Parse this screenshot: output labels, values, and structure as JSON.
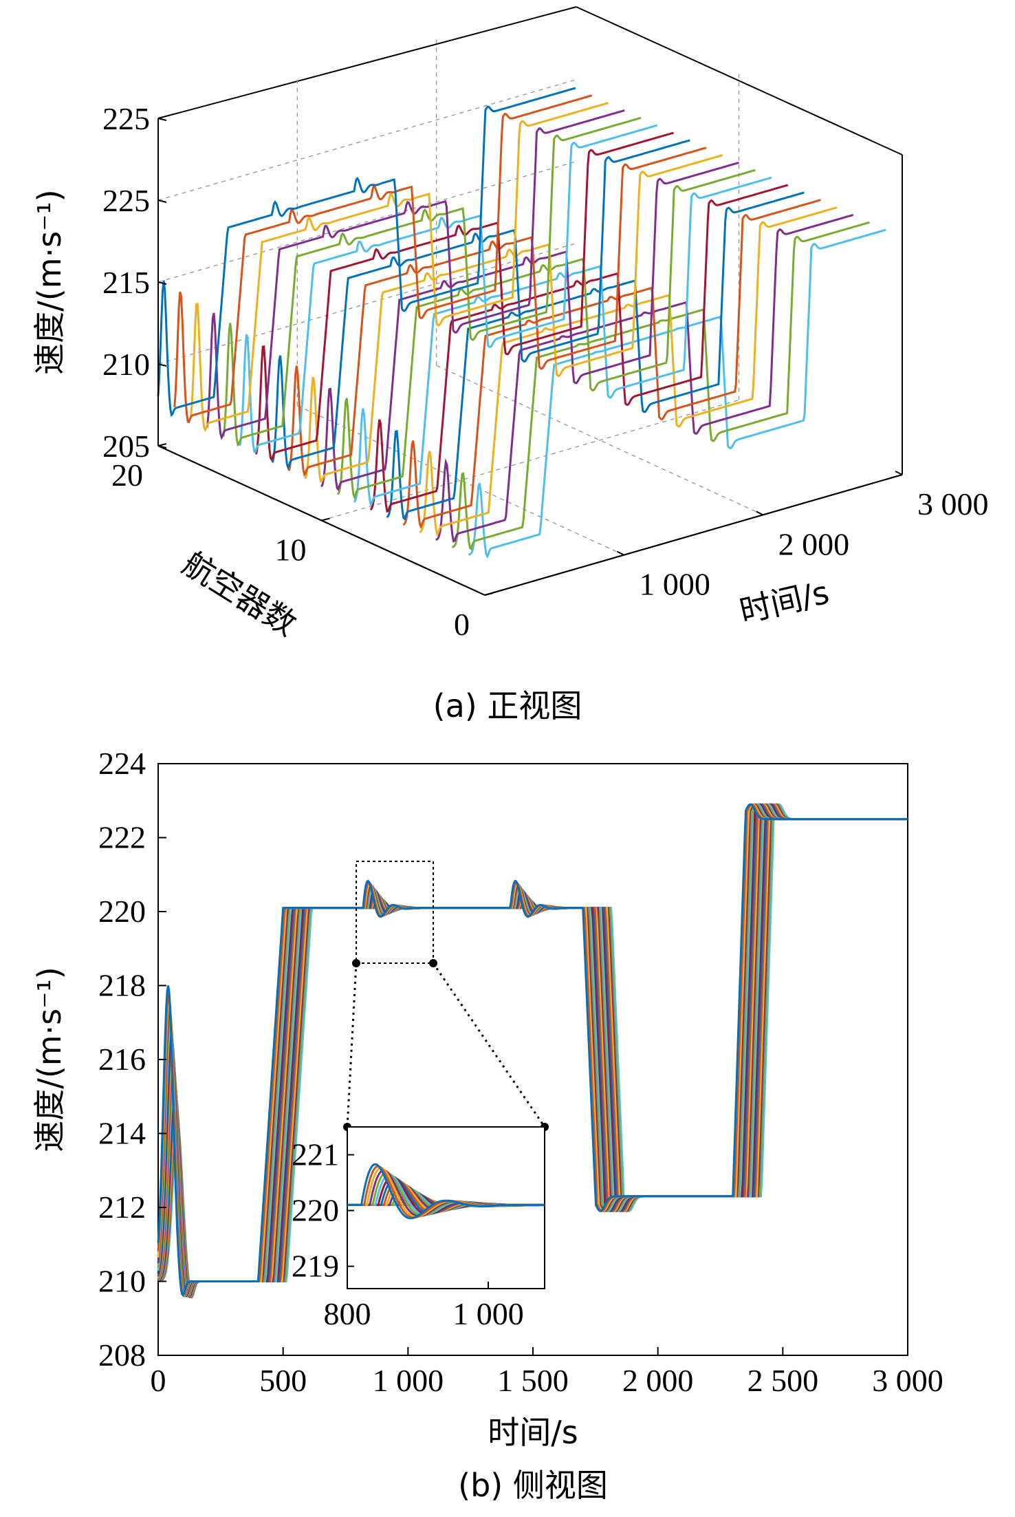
{
  "chart_data": [
    {
      "type": "line",
      "panel": "a",
      "caption": "(a) 正视图",
      "ylabel": "速度/(m·s⁻¹)",
      "xlabel": "时间/s",
      "zlabel": "航空器数",
      "y_ticks": [
        "205",
        "210",
        "215",
        "225",
        "225"
      ],
      "x_ticks": [
        "1 000",
        "2 000",
        "3 000"
      ],
      "z_ticks": [
        "0",
        "10",
        "20"
      ],
      "xlim": [
        0,
        3000
      ],
      "zlim": [
        0,
        20
      ],
      "grid": true,
      "series_count": 20
    },
    {
      "type": "line",
      "panel": "b",
      "caption": "(b) 侧视图",
      "ylabel": "速度/(m·s⁻¹)",
      "xlabel": "时间/s",
      "xlim": [
        0,
        3000
      ],
      "ylim": [
        208,
        224
      ],
      "x_ticks": [
        "0",
        "500",
        "1 000",
        "1 500",
        "2 000",
        "2 500",
        "3 000"
      ],
      "y_ticks": [
        "208",
        "210",
        "212",
        "214",
        "216",
        "218",
        "220",
        "222",
        "224"
      ],
      "grid": false,
      "series_count": 20,
      "profile": {
        "segments": [
          {
            "t_start": 0,
            "v": 210.0,
            "note": "initial oscillation peak ~218"
          },
          {
            "t_start": 400,
            "t_end": 500,
            "v_from": 210.0,
            "v_to": 220.1
          },
          {
            "t_start": 500,
            "t_end": 1700,
            "v": 220.1
          },
          {
            "t_start": 1700,
            "t_end": 1750,
            "v_from": 220.1,
            "v_to": 212.3
          },
          {
            "t_start": 1750,
            "t_end": 2300,
            "v": 212.3
          },
          {
            "t_start": 2300,
            "t_end": 2350,
            "v_from": 212.3,
            "v_to": 222.5
          },
          {
            "t_start": 2350,
            "t_end": 3000,
            "v": 222.5
          }
        ],
        "disturbances": [
          {
            "t": 820,
            "amplitude": 1.2
          },
          {
            "t": 1410,
            "amplitude": 1.2
          }
        ]
      },
      "inset": {
        "xlim": [
          800,
          1080
        ],
        "ylim": [
          218.6,
          221.5
        ],
        "x_ticks": [
          "800",
          "1 000"
        ],
        "y_ticks": [
          "219",
          "220",
          "221"
        ]
      }
    }
  ],
  "colors": [
    "#0072BD",
    "#D95319",
    "#EDB120",
    "#7E2F8E",
    "#77AC30",
    "#4DBEEE",
    "#A2142F"
  ]
}
